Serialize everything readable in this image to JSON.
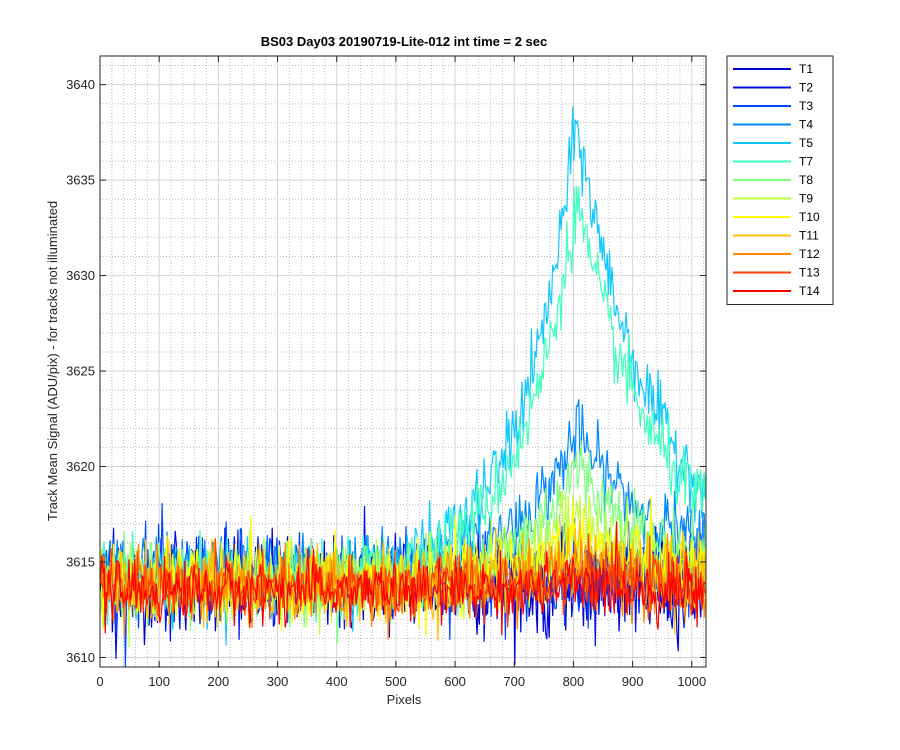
{
  "chart_data": {
    "type": "line",
    "title": "BS03 Day03 20190719-Lite-012 int time = 2 sec",
    "xlabel": "Pixels",
    "ylabel": "Track Mean Signal (ADU/pix) - for tracks not illuminated",
    "xlim": [
      0,
      1024
    ],
    "ylim": [
      3609.5,
      3641.5
    ],
    "x_ticks": [
      0,
      100,
      200,
      300,
      400,
      500,
      600,
      700,
      800,
      900,
      1000
    ],
    "y_ticks": [
      3610,
      3615,
      3620,
      3625,
      3630,
      3635,
      3640
    ],
    "grid": "major and minor",
    "legend_position": "outside-top-right",
    "series": [
      {
        "name": "T1",
        "color": "#0000c8",
        "base": 3613.8,
        "peak": 0,
        "noise": 1.2
      },
      {
        "name": "T2",
        "color": "#0010e8",
        "base": 3614.0,
        "peak": 0,
        "noise": 1.2
      },
      {
        "name": "T3",
        "color": "#0048ff",
        "base": 3614.3,
        "peak": 0.4,
        "noise": 1.2
      },
      {
        "name": "T4",
        "color": "#0088ff",
        "base": 3614.6,
        "peak": 7.2,
        "noise": 0.9
      },
      {
        "name": "T5",
        "color": "#10c8ff",
        "base": 3614.0,
        "peak": 24.0,
        "noise": 0.9
      },
      {
        "name": "T7",
        "color": "#40ffc0",
        "base": 3614.0,
        "peak": 20.0,
        "noise": 0.9
      },
      {
        "name": "T8",
        "color": "#80ff80",
        "base": 3614.0,
        "peak": 6.0,
        "noise": 1.0
      },
      {
        "name": "T9",
        "color": "#c0ff40",
        "base": 3613.9,
        "peak": 3.5,
        "noise": 1.0
      },
      {
        "name": "T10",
        "color": "#ffff00",
        "base": 3613.9,
        "peak": 2.4,
        "noise": 1.0
      },
      {
        "name": "T11",
        "color": "#ffc000",
        "base": 3613.8,
        "peak": 1.6,
        "noise": 1.0
      },
      {
        "name": "T12",
        "color": "#ff8800",
        "base": 3613.7,
        "peak": 1.0,
        "noise": 0.9
      },
      {
        "name": "T13",
        "color": "#ff4000",
        "base": 3613.6,
        "peak": 0.6,
        "noise": 0.8
      },
      {
        "name": "T14",
        "color": "#ff0000",
        "base": 3613.5,
        "peak": 0.3,
        "noise": 0.8
      }
    ]
  }
}
